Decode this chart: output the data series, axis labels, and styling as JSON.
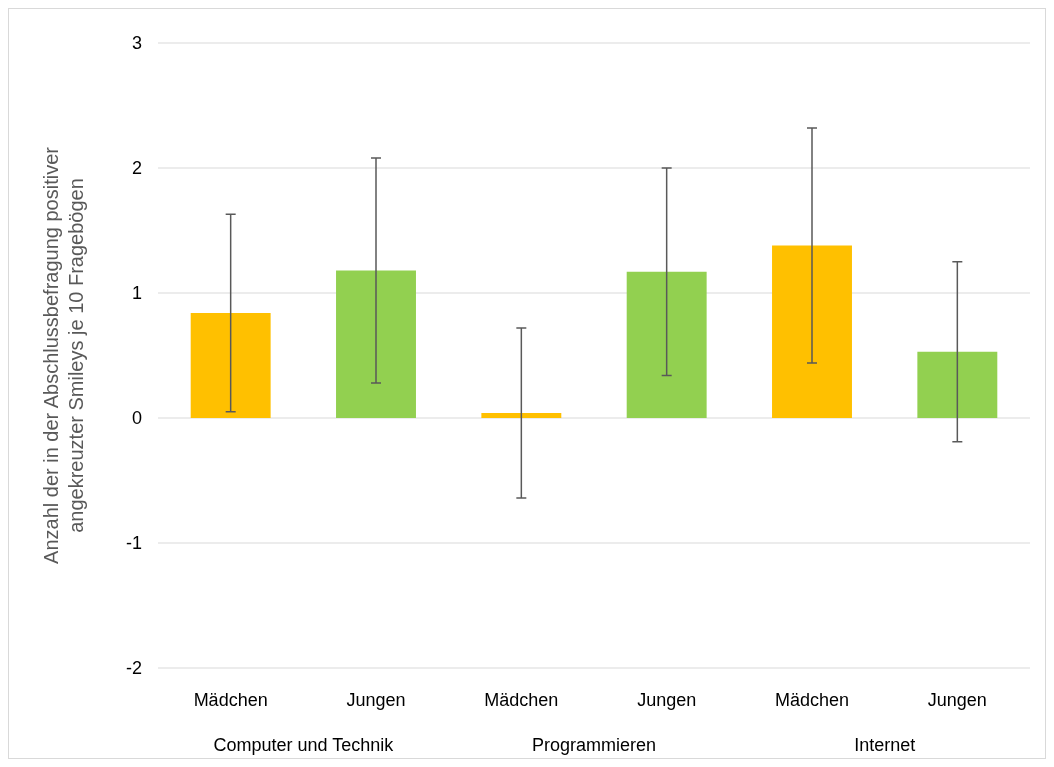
{
  "chart_data": {
    "type": "bar",
    "ylabel": "Anzahl der in der Abschlussbefragung positiver\nangekreuzter Smileys je 10 Fragebögen",
    "categories": [
      "Mädchen",
      "Jungen",
      "Mädchen",
      "Jungen",
      "Mädchen",
      "Jungen"
    ],
    "values": [
      0.84,
      1.18,
      0.04,
      1.17,
      1.38,
      0.53
    ],
    "errors": [
      0.79,
      0.9,
      0.68,
      0.83,
      0.94,
      0.72
    ],
    "colors": [
      "#ffc000",
      "#92d050",
      "#ffc000",
      "#92d050",
      "#ffc000",
      "#92d050"
    ],
    "annotations": [
      "Computer und Technik",
      "Programmieren",
      "Internet"
    ],
    "ylim": [
      -2,
      3
    ],
    "yticks": [
      -2,
      -1,
      0,
      1,
      2,
      3
    ],
    "grid": "y"
  }
}
